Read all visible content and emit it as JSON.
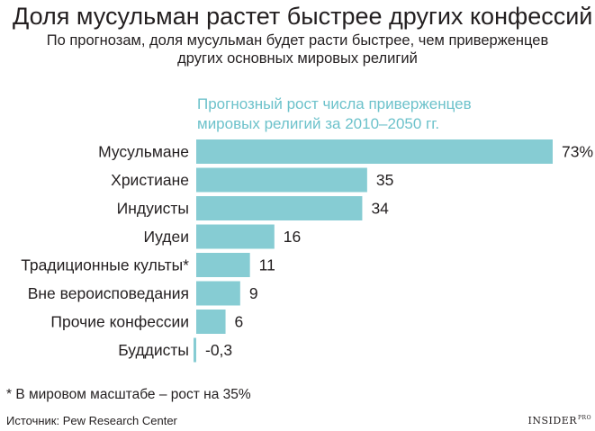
{
  "header": {
    "title": "Доля мусульман растет быстрее других конфессий",
    "subtitle_line1": "По прогнозам, доля мусульман будет расти быстрее, чем приверженцев",
    "subtitle_line2": "других основных мировых религий"
  },
  "chart_data": {
    "type": "bar",
    "orientation": "horizontal",
    "title_line1": "Прогнозный рост числа приверженцев",
    "title_line2": "мировых религий за 2010–2050 гг.",
    "categories": [
      "Мусульмане",
      "Христиане",
      "Индуисты",
      "Иудеи",
      "Традиционные культы*",
      "Вне вероисповедания",
      "Прочие конфессии",
      "Буддисты"
    ],
    "values": [
      73,
      35,
      34,
      16,
      11,
      9,
      6,
      -0.3
    ],
    "value_labels": [
      "73%",
      "35",
      "34",
      "16",
      "11",
      "9",
      "6",
      "-0,3"
    ],
    "unit": "%",
    "bar_color": "#86ccd3",
    "xlim": [
      -0.5,
      73
    ]
  },
  "footer": {
    "footnote": "* В мировом масштабе – рост на 35%",
    "source": "Источник: Pew Research Center",
    "logo_text": "INSIDER",
    "logo_sup": "PRO"
  }
}
